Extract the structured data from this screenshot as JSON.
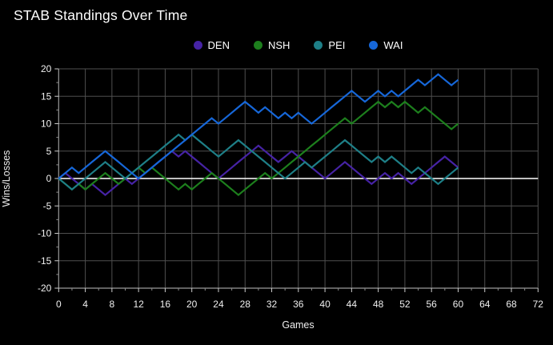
{
  "page": {
    "background_color": "#000000",
    "grid_color": "#4f4f4f",
    "zero_line_color": "#ffffff",
    "axis_line_color": "#9a9a9a",
    "tick_color": "#cccccc",
    "minor_tick_color": "#8a8a8a",
    "label_color": "#f0f0f0"
  },
  "chart_data": {
    "type": "line",
    "title": "STAB Standings Over Time",
    "xlabel": "Games",
    "ylabel": "Wins/Losses",
    "xlim": [
      0,
      72
    ],
    "ylim": [
      -20,
      20
    ],
    "x_tick_labels": [
      0,
      4,
      8,
      12,
      16,
      20,
      24,
      28,
      32,
      36,
      40,
      44,
      48,
      52,
      56,
      60,
      64,
      68,
      72
    ],
    "y_tick_labels": [
      20,
      15,
      10,
      5,
      0,
      -5,
      -10,
      -15,
      -20
    ],
    "grid": true,
    "legend_position": "top",
    "x_start": 0,
    "x_step": 1,
    "series": [
      {
        "name": "DEN",
        "color": "#4623a5",
        "values": [
          0,
          1,
          0,
          -1,
          -2,
          -1,
          -2,
          -3,
          -2,
          -1,
          0,
          -1,
          0,
          1,
          2,
          3,
          4,
          5,
          4,
          5,
          4,
          3,
          2,
          1,
          0,
          1,
          2,
          3,
          4,
          5,
          6,
          5,
          4,
          3,
          4,
          5,
          4,
          3,
          2,
          1,
          0,
          1,
          2,
          3,
          2,
          1,
          0,
          -1,
          0,
          1,
          0,
          1,
          0,
          -1,
          0,
          1,
          2,
          3,
          4,
          3,
          2
        ]
      },
      {
        "name": "NSH",
        "color": "#1d7f1d",
        "values": [
          0,
          -1,
          -2,
          -1,
          -2,
          -1,
          0,
          1,
          0,
          -1,
          0,
          1,
          2,
          1,
          2,
          1,
          0,
          -1,
          -2,
          -1,
          -2,
          -1,
          0,
          1,
          0,
          -1,
          -2,
          -3,
          -2,
          -1,
          0,
          1,
          0,
          1,
          2,
          3,
          4,
          5,
          6,
          7,
          8,
          9,
          10,
          11,
          10,
          11,
          12,
          13,
          14,
          13,
          14,
          13,
          14,
          13,
          12,
          13,
          12,
          11,
          10,
          9,
          10
        ]
      },
      {
        "name": "PEI",
        "color": "#1e7f87",
        "values": [
          0,
          -1,
          -2,
          -1,
          0,
          1,
          2,
          3,
          2,
          1,
          0,
          1,
          2,
          3,
          4,
          5,
          6,
          7,
          8,
          7,
          8,
          7,
          6,
          5,
          4,
          5,
          6,
          7,
          6,
          5,
          4,
          3,
          2,
          1,
          0,
          1,
          2,
          3,
          2,
          3,
          4,
          5,
          6,
          7,
          6,
          5,
          4,
          3,
          4,
          3,
          4,
          3,
          2,
          1,
          2,
          1,
          0,
          -1,
          0,
          1,
          2
        ]
      },
      {
        "name": "WAI",
        "color": "#1667d9",
        "values": [
          0,
          1,
          2,
          1,
          2,
          3,
          4,
          5,
          4,
          3,
          2,
          1,
          0,
          1,
          2,
          3,
          4,
          5,
          6,
          7,
          8,
          9,
          10,
          11,
          10,
          11,
          12,
          13,
          14,
          13,
          12,
          13,
          12,
          11,
          12,
          11,
          12,
          11,
          10,
          11,
          12,
          13,
          14,
          15,
          16,
          15,
          14,
          15,
          16,
          15,
          16,
          15,
          16,
          17,
          18,
          17,
          18,
          19,
          18,
          17,
          18
        ]
      }
    ]
  }
}
